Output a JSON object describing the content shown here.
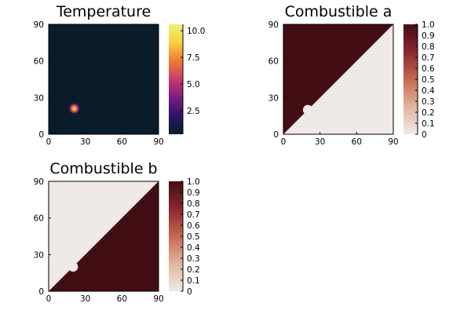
{
  "chart_data": [
    {
      "type": "heatmap",
      "title": "Temperature",
      "xlim": [
        0,
        90
      ],
      "ylim": [
        0,
        90
      ],
      "xticks": [
        "0",
        "30",
        "60",
        "90"
      ],
      "yticks": [
        "0",
        "30",
        "60",
        "90"
      ],
      "colorbar": {
        "range": [
          0.3,
          10.6
        ],
        "ticks": [
          "2.5",
          "5.0",
          "7.5",
          "10.0"
        ],
        "tick_values": [
          2.5,
          5.0,
          7.5,
          10.0
        ],
        "colormap": "inferno",
        "colors": [
          "#0a1c2a",
          "#2b1466",
          "#7a1d83",
          "#c93a6f",
          "#ef7a35",
          "#f6d13b",
          "#f0f07a"
        ]
      },
      "background_value": 0.3,
      "hotspot": {
        "x": 21,
        "y": 21,
        "radius": 5,
        "peak": 10.6
      }
    },
    {
      "type": "heatmap",
      "title": "Combustible a",
      "xlim": [
        0,
        90
      ],
      "ylim": [
        0,
        90
      ],
      "xticks": [
        "0",
        "30",
        "60",
        "90"
      ],
      "yticks": [
        "0",
        "30",
        "60",
        "90"
      ],
      "colorbar": {
        "range": [
          0,
          1
        ],
        "ticks": [
          "0",
          "0.1",
          "0.2",
          "0.3",
          "0.4",
          "0.5",
          "0.6",
          "0.7",
          "0.8",
          "0.9",
          "1.0"
        ],
        "tick_values": [
          0,
          0.1,
          0.2,
          0.3,
          0.4,
          0.5,
          0.6,
          0.7,
          0.8,
          0.9,
          1.0
        ],
        "colors": [
          "#efe9e8",
          "#e1b69e",
          "#c46a4f",
          "#8b2630",
          "#420d13"
        ]
      },
      "region": "upper-left",
      "region_value": 1.0,
      "other_value": 0.0,
      "spot": {
        "x": 20,
        "y": 20,
        "radius": 4,
        "value": 0.0
      }
    },
    {
      "type": "heatmap",
      "title": "Combustible b",
      "xlim": [
        0,
        90
      ],
      "ylim": [
        0,
        90
      ],
      "xticks": [
        "0",
        "30",
        "60",
        "90"
      ],
      "yticks": [
        "0",
        "30",
        "60",
        "90"
      ],
      "colorbar": {
        "range": [
          0,
          1
        ],
        "ticks": [
          "0",
          "0.1",
          "0.2",
          "0.3",
          "0.4",
          "0.5",
          "0.6",
          "0.7",
          "0.8",
          "0.9",
          "1.0"
        ],
        "tick_values": [
          0,
          0.1,
          0.2,
          0.3,
          0.4,
          0.5,
          0.6,
          0.7,
          0.8,
          0.9,
          1.0
        ],
        "colors": [
          "#efe9e8",
          "#e1b69e",
          "#c46a4f",
          "#8b2630",
          "#420d13"
        ]
      },
      "region": "lower-right",
      "region_value": 1.0,
      "other_value": 0.0,
      "spot": {
        "x": 20,
        "y": 20,
        "radius": 4,
        "value": 0.0
      }
    }
  ]
}
